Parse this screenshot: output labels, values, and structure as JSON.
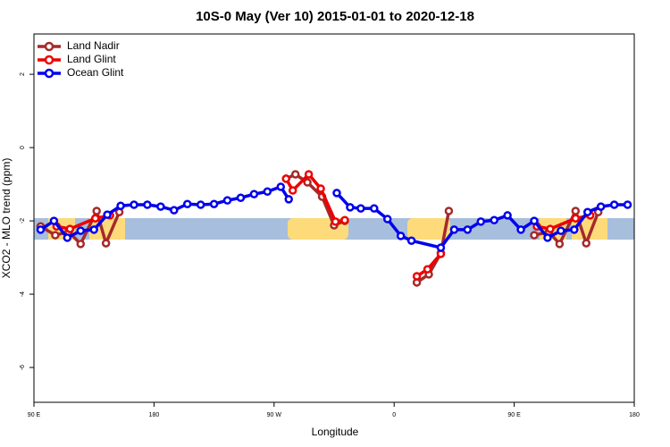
{
  "chart_data": {
    "type": "line",
    "title": "10S-0 May (Ver 10)   2015-01-01 to 2020-12-18",
    "x_label": "Longitude",
    "y_label": "XCO2 - MLO trend (ppm)",
    "xlim": [
      90,
      540
    ],
    "ylim": [
      -6.95,
      3.1
    ],
    "xticks": [
      {
        "value": 90,
        "label": "90 E"
      },
      {
        "value": 180,
        "label": "180"
      },
      {
        "value": 270,
        "label": "90 W"
      },
      {
        "value": 360,
        "label": "0"
      },
      {
        "value": 450,
        "label": "90 E"
      },
      {
        "value": 540,
        "label": "180"
      }
    ],
    "yticks": [
      -6,
      -4,
      -2,
      0,
      2
    ],
    "legend": "top-left",
    "series": [
      {
        "name": "Land Nadir",
        "color": "#a52a2a",
        "x": [
          95,
          106,
          116,
          125,
          137,
          144,
          154,
          200,
          279,
          286,
          295,
          306,
          315,
          323,
          350,
          377,
          386,
          395,
          401,
          430,
          465,
          476,
          484,
          496,
          504,
          513
        ],
        "values": [
          -2.15,
          -2.39,
          -2.3,
          -2.63,
          -1.73,
          -2.61,
          -1.76,
          null,
          -0.85,
          -0.73,
          -0.95,
          -1.34,
          -2.12,
          -2.0,
          null,
          -3.68,
          -3.46,
          -2.88,
          -1.73,
          null,
          -2.39,
          -2.3,
          -2.63,
          -1.73,
          -2.61,
          -1.76
        ]
      },
      {
        "name": "Land Glint",
        "color": "#ee0000",
        "x": [
          107,
          117,
          136,
          147,
          200,
          279,
          284,
          296,
          305,
          316,
          323,
          350,
          377,
          385,
          395,
          430,
          467,
          477,
          496,
          507
        ],
        "values": [
          -2.15,
          -2.22,
          -1.93,
          -1.85,
          null,
          -0.85,
          -1.17,
          -0.73,
          -1.12,
          -2.02,
          -1.98,
          null,
          -3.51,
          -3.32,
          -2.9,
          null,
          -2.15,
          -2.22,
          -1.93,
          -1.85
        ]
      },
      {
        "name": "Ocean Glint",
        "color": "#0000ee",
        "x": [
          95,
          105,
          115,
          125,
          135,
          145,
          155,
          165,
          175,
          185,
          195,
          205,
          215,
          225,
          235,
          245,
          255,
          265,
          275,
          281,
          300,
          317,
          327,
          335,
          345,
          355,
          365,
          373,
          395,
          405,
          415,
          425,
          435,
          445,
          455,
          465,
          475,
          485,
          495,
          505,
          515,
          525,
          535
        ],
        "values": [
          -2.24,
          -2.0,
          -2.46,
          -2.27,
          -2.24,
          -1.83,
          -1.59,
          -1.56,
          -1.56,
          -1.61,
          -1.71,
          -1.54,
          -1.56,
          -1.54,
          -1.44,
          -1.37,
          -1.27,
          -1.2,
          -1.07,
          -1.41,
          null,
          -1.24,
          -1.63,
          -1.66,
          -1.66,
          -1.95,
          -2.41,
          -2.54,
          -2.73,
          -2.24,
          -2.24,
          -2.02,
          -1.98,
          -1.85,
          -2.24,
          -2.0,
          -2.46,
          -2.27,
          -2.24,
          -1.76,
          -1.61,
          -1.56,
          -1.56
        ]
      }
    ]
  }
}
